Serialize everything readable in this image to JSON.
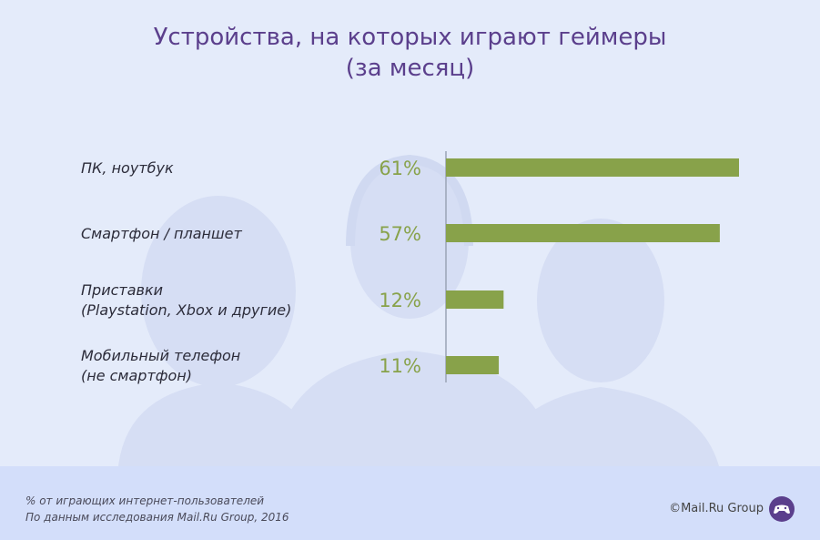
{
  "title_line1": "Устройства, на которых играют геймеры",
  "title_line2": "(за месяц)",
  "chart_data": {
    "type": "bar",
    "orientation": "horizontal",
    "title": "Устройства, на которых играют геймеры (за месяц)",
    "categories": [
      [
        "ПК, ноутбук"
      ],
      [
        "Смартфон / планшет"
      ],
      [
        "Приставки",
        "(Playstation, Xbox и другие)"
      ],
      [
        "Мобильный телефон",
        "(не смартфон)"
      ]
    ],
    "values": [
      61,
      57,
      12,
      11
    ],
    "value_labels": [
      "61%",
      "57%",
      "12%",
      "11%"
    ],
    "unit": "%",
    "xlim": [
      0,
      61
    ],
    "bar_color": "#88a24a",
    "label_color": "#88a24a",
    "category_color": "#2c2c3a"
  },
  "footnote_line1": "% от играющих интернет-пользователей",
  "footnote_line2": "По данным исследования Mail.Ru Group, 2016",
  "brand": "©Mail.Ru Group",
  "colors": {
    "background": "#e4ebfa",
    "silhouette": "#d3dcf2",
    "title": "#5b3f8c",
    "footer": "#d3defa"
  }
}
